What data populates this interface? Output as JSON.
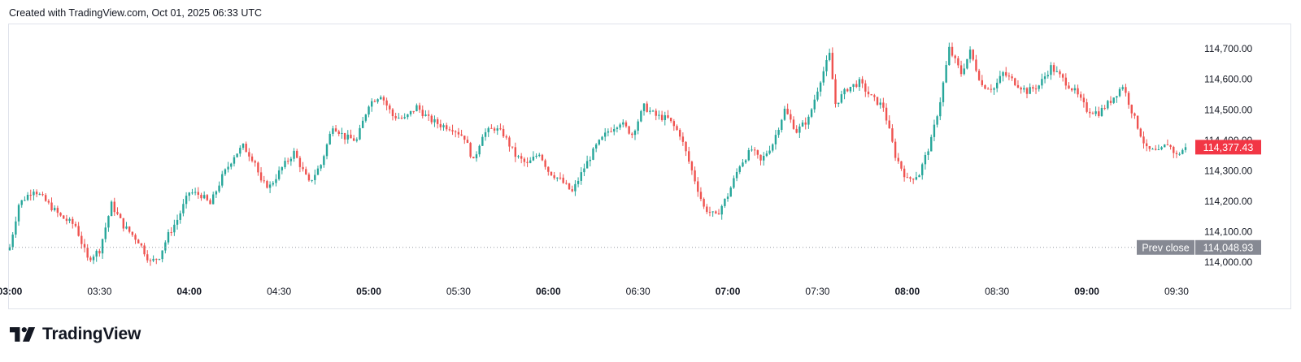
{
  "header": {
    "note": "Created with TradingView.com, Oct 01, 2025 06:33 UTC"
  },
  "branding": {
    "logo_text": "TradingView",
    "logo_icon": "tradingview-logo-icon"
  },
  "colors": {
    "up": "#26a69a",
    "down": "#ef5350",
    "grid_border": "#e0e3eb",
    "prev_close_tag": "#868993",
    "last_price_tag": "#f23645",
    "text": "#131722"
  },
  "chart_data": {
    "type": "candlestick",
    "interval_minutes": 1,
    "x_start": "03:00",
    "x_end": "09:33",
    "ylim": [
      113950,
      114780
    ],
    "y_ticks": [
      {
        "value": 114000,
        "label": "114,000.00"
      },
      {
        "value": 114100,
        "label": "114,100.00"
      },
      {
        "value": 114200,
        "label": "114,200.00"
      },
      {
        "value": 114300,
        "label": "114,300.00"
      },
      {
        "value": 114400,
        "label": "114,400.00"
      },
      {
        "value": 114500,
        "label": "114,500.00"
      },
      {
        "value": 114600,
        "label": "114,600.00"
      },
      {
        "value": 114700,
        "label": "114,700.00"
      }
    ],
    "x_ticks": [
      {
        "time": "03:00",
        "label": "03:00",
        "bold": true
      },
      {
        "time": "03:30",
        "label": "03:30",
        "bold": false
      },
      {
        "time": "04:00",
        "label": "04:00",
        "bold": true
      },
      {
        "time": "04:30",
        "label": "04:30",
        "bold": false
      },
      {
        "time": "05:00",
        "label": "05:00",
        "bold": true
      },
      {
        "time": "05:30",
        "label": "05:30",
        "bold": false
      },
      {
        "time": "06:00",
        "label": "06:00",
        "bold": true
      },
      {
        "time": "06:30",
        "label": "06:30",
        "bold": false
      },
      {
        "time": "07:00",
        "label": "07:00",
        "bold": true
      },
      {
        "time": "07:30",
        "label": "07:30",
        "bold": false
      },
      {
        "time": "08:00",
        "label": "08:00",
        "bold": true
      },
      {
        "time": "08:30",
        "label": "08:30",
        "bold": false
      },
      {
        "time": "09:00",
        "label": "09:00",
        "bold": true
      },
      {
        "time": "09:30",
        "label": "09:30",
        "bold": false
      }
    ],
    "prev_close": {
      "label": "Prev close",
      "value": 114048.93,
      "value_label": "114,048.93"
    },
    "last_price": {
      "value": 114377.43,
      "value_label": "114,377.43"
    },
    "close_path": [
      [
        "03:00",
        114050
      ],
      [
        "03:03",
        114190
      ],
      [
        "03:08",
        114240
      ],
      [
        "03:12",
        114200
      ],
      [
        "03:17",
        114150
      ],
      [
        "03:22",
        114120
      ],
      [
        "03:26",
        114010
      ],
      [
        "03:30",
        114040
      ],
      [
        "03:34",
        114190
      ],
      [
        "03:38",
        114120
      ],
      [
        "03:43",
        114070
      ],
      [
        "03:47",
        114000
      ],
      [
        "03:50",
        114020
      ],
      [
        "03:53",
        114090
      ],
      [
        "03:56",
        114140
      ],
      [
        "04:00",
        114230
      ],
      [
        "04:04",
        114220
      ],
      [
        "04:07",
        114190
      ],
      [
        "04:11",
        114280
      ],
      [
        "04:15",
        114350
      ],
      [
        "04:18",
        114380
      ],
      [
        "04:22",
        114330
      ],
      [
        "04:24",
        114260
      ],
      [
        "04:27",
        114250
      ],
      [
        "04:31",
        114310
      ],
      [
        "04:35",
        114360
      ],
      [
        "04:40",
        114260
      ],
      [
        "04:44",
        114320
      ],
      [
        "04:48",
        114450
      ],
      [
        "04:52",
        114410
      ],
      [
        "04:56",
        114400
      ],
      [
        "05:00",
        114520
      ],
      [
        "05:04",
        114550
      ],
      [
        "05:08",
        114480
      ],
      [
        "05:12",
        114470
      ],
      [
        "05:16",
        114510
      ],
      [
        "05:20",
        114470
      ],
      [
        "05:24",
        114450
      ],
      [
        "05:28",
        114440
      ],
      [
        "05:32",
        114410
      ],
      [
        "05:35",
        114330
      ],
      [
        "05:38",
        114420
      ],
      [
        "05:42",
        114440
      ],
      [
        "05:45",
        114420
      ],
      [
        "05:49",
        114350
      ],
      [
        "05:53",
        114320
      ],
      [
        "05:57",
        114360
      ],
      [
        "06:00",
        114300
      ],
      [
        "06:04",
        114270
      ],
      [
        "06:08",
        114230
      ],
      [
        "06:12",
        114310
      ],
      [
        "06:16",
        114380
      ],
      [
        "06:20",
        114430
      ],
      [
        "06:24",
        114460
      ],
      [
        "06:28",
        114420
      ],
      [
        "06:32",
        114510
      ],
      [
        "06:36",
        114480
      ],
      [
        "06:40",
        114470
      ],
      [
        "06:44",
        114420
      ],
      [
        "06:48",
        114300
      ],
      [
        "06:52",
        114180
      ],
      [
        "06:56",
        114150
      ],
      [
        "07:00",
        114220
      ],
      [
        "07:04",
        114320
      ],
      [
        "07:08",
        114370
      ],
      [
        "07:11",
        114330
      ],
      [
        "07:15",
        114390
      ],
      [
        "07:19",
        114500
      ],
      [
        "07:23",
        114430
      ],
      [
        "07:27",
        114470
      ],
      [
        "07:31",
        114600
      ],
      [
        "07:34",
        114680
      ],
      [
        "07:36",
        114520
      ],
      [
        "07:40",
        114570
      ],
      [
        "07:44",
        114590
      ],
      [
        "07:48",
        114540
      ],
      [
        "07:52",
        114510
      ],
      [
        "07:56",
        114350
      ],
      [
        "08:00",
        114270
      ],
      [
        "08:04",
        114290
      ],
      [
        "08:08",
        114400
      ],
      [
        "08:11",
        114530
      ],
      [
        "08:14",
        114700
      ],
      [
        "08:18",
        114620
      ],
      [
        "08:21",
        114690
      ],
      [
        "08:25",
        114580
      ],
      [
        "08:29",
        114570
      ],
      [
        "08:32",
        114620
      ],
      [
        "08:36",
        114590
      ],
      [
        "08:40",
        114560
      ],
      [
        "08:44",
        114580
      ],
      [
        "08:48",
        114640
      ],
      [
        "08:52",
        114600
      ],
      [
        "08:56",
        114560
      ],
      [
        "09:00",
        114500
      ],
      [
        "09:04",
        114490
      ],
      [
        "09:08",
        114530
      ],
      [
        "09:12",
        114580
      ],
      [
        "09:16",
        114470
      ],
      [
        "09:20",
        114370
      ],
      [
        "09:24",
        114360
      ],
      [
        "09:27",
        114390
      ],
      [
        "09:30",
        114350
      ],
      [
        "09:33",
        114377.43
      ]
    ]
  }
}
